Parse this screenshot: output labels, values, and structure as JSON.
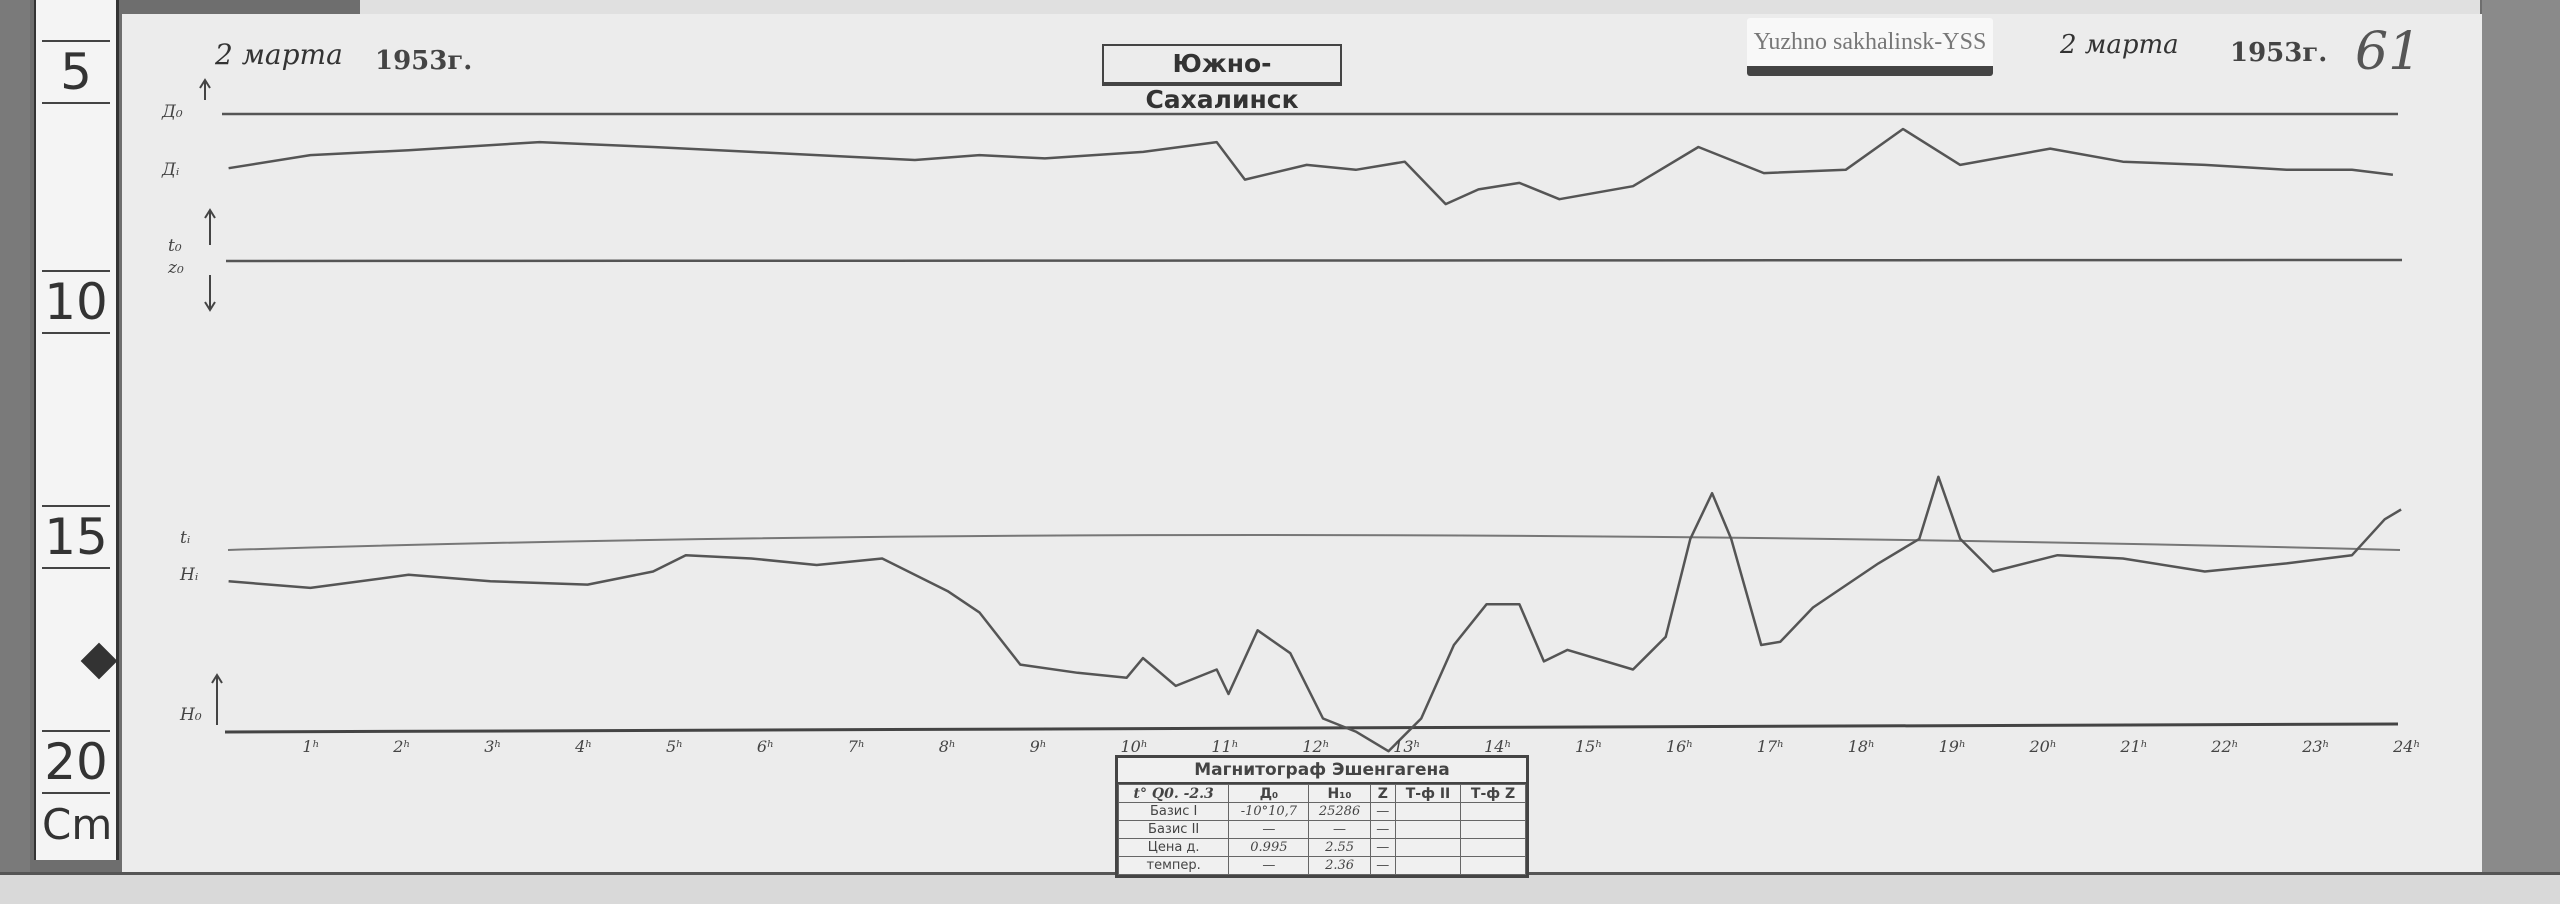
{
  "ruler": {
    "marks": [
      "5",
      "10",
      "15",
      "20"
    ],
    "unit": "Cm"
  },
  "header": {
    "date_left": "2 марта",
    "year_left": "1953г.",
    "station_stamp": "Южно-Сахалинск",
    "label_tag": "Yuzhno sakhalinsk-YSS",
    "date_right": "2 марта",
    "year_right": "1953г.",
    "sheet_number": "61"
  },
  "trace_labels": {
    "d0": "Д₀",
    "di": "Дᵢ",
    "t0": "t₀",
    "z0": "z₀",
    "ti": "tᵢ",
    "hi": "Hᵢ",
    "h0": "H₀"
  },
  "instrument_table": {
    "title": "Магнитограф  Эшенгагена",
    "columns": [
      "t° Q0. -2.3",
      "Д₀",
      "H₁₀",
      "Z",
      "Т-ф II",
      "Т-ф Z"
    ],
    "rows": [
      [
        "Базис I",
        "-10°10,7",
        "25286",
        "—",
        "",
        ""
      ],
      [
        "Базис II",
        "—",
        "—",
        "—",
        "",
        ""
      ],
      [
        "Цена д.",
        "0.995",
        "2.55",
        "—",
        "",
        ""
      ],
      [
        "темпер.",
        "—",
        "2.36",
        "—",
        "",
        ""
      ]
    ]
  },
  "colors": {
    "paper": "#ececec",
    "trace": "#555555",
    "ink": "#333333"
  },
  "chart_data": {
    "type": "line",
    "title": "",
    "xlabel": "",
    "ylabel": "",
    "xlim": [
      0,
      24
    ],
    "x_tick_labels": [
      "1ʰ",
      "2ʰ",
      "3ʰ",
      "4ʰ",
      "5ʰ",
      "6ʰ",
      "7ʰ",
      "8ʰ",
      "9ʰ",
      "10ʰ",
      "11ʰ",
      "12ʰ",
      "13ʰ",
      "14ʰ",
      "15ʰ",
      "16ʰ",
      "17ʰ",
      "18ʰ",
      "19ʰ",
      "20ʰ",
      "21ʰ",
      "22ʰ",
      "23ʰ",
      "24ʰ"
    ],
    "grid": false,
    "series": [
      {
        "name": "Дᵢ",
        "x": [
          0.1,
          1.0,
          2.08,
          3.52,
          4.77,
          5.85,
          6.93,
          7.65,
          8.36,
          9.08,
          10.16,
          10.97,
          11.28,
          11.96,
          12.5,
          13.04,
          13.49,
          13.85,
          14.3,
          14.74,
          15.55,
          16.27,
          16.99,
          17.89,
          18.52,
          19.15,
          20.14,
          20.94,
          21.84,
          22.74,
          23.46,
          23.91
        ],
        "y": [
          27,
          35,
          38,
          43,
          40,
          37,
          34,
          32,
          35,
          33,
          37,
          43,
          20,
          29,
          26,
          31,
          5,
          14,
          18,
          8,
          16,
          40,
          24,
          26,
          51,
          29,
          39,
          31,
          29,
          26,
          26,
          23
        ]
      },
      {
        "name": "Hᵢ",
        "x": [
          0.1,
          1.0,
          2.08,
          2.98,
          4.05,
          4.77,
          5.13,
          5.85,
          6.57,
          7.29,
          8.01,
          8.36,
          8.81,
          9.44,
          9.98,
          10.16,
          10.52,
          10.97,
          11.1,
          11.42,
          11.78,
          12.14,
          12.5,
          12.86,
          13.22,
          13.58,
          13.94,
          14.3,
          14.57,
          14.83,
          15.55,
          15.91,
          16.18,
          16.42,
          16.63,
          16.96,
          17.17,
          17.53,
          18.25,
          18.7,
          18.91,
          19.15,
          19.51,
          20.22,
          20.94,
          21.84,
          22.74,
          23.46,
          23.82,
          24.0
        ],
        "y": [
          91,
          87,
          95,
          91,
          89,
          97,
          107,
          105,
          101,
          105,
          85,
          72,
          40,
          35,
          32,
          44,
          27,
          37,
          22,
          61,
          47,
          7,
          -1,
          -13,
          7,
          52,
          77,
          77,
          42,
          49,
          37,
          57,
          117,
          145,
          117,
          52,
          54,
          75,
          102,
          117,
          155,
          117,
          97,
          107,
          105,
          97,
          102,
          107,
          129,
          135
        ]
      }
    ]
  }
}
